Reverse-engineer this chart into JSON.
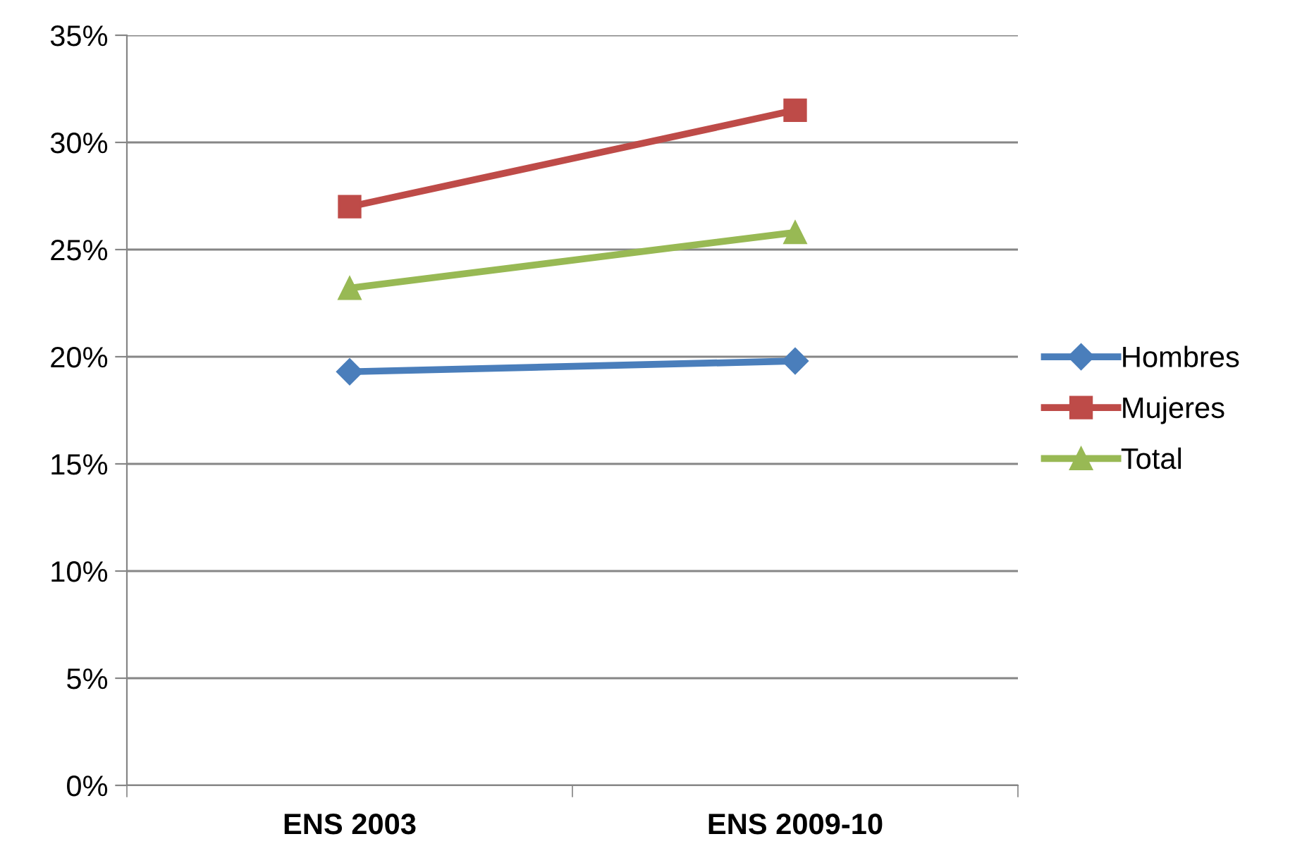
{
  "chart_data": {
    "type": "line",
    "categories": [
      "ENS 2003",
      "ENS 2009-10"
    ],
    "series": [
      {
        "name": "Hombres",
        "color": "#4a7ebb",
        "marker": "diamond",
        "values": [
          19.3,
          19.8
        ]
      },
      {
        "name": "Mujeres",
        "color": "#be4b48",
        "marker": "square",
        "values": [
          27.0,
          31.5
        ]
      },
      {
        "name": "Total",
        "color": "#98b954",
        "marker": "triangle",
        "values": [
          23.2,
          25.8
        ]
      }
    ],
    "ylim": [
      0,
      35
    ],
    "yticks": [
      {
        "value": 0,
        "label": "0%"
      },
      {
        "value": 5,
        "label": "5%"
      },
      {
        "value": 10,
        "label": "10%"
      },
      {
        "value": 15,
        "label": "15%"
      },
      {
        "value": 20,
        "label": "20%"
      },
      {
        "value": 25,
        "label": "25%"
      },
      {
        "value": 30,
        "label": "30%"
      },
      {
        "value": 35,
        "label": "35%"
      }
    ],
    "grid": "y",
    "legend": "right",
    "line_style": "solid"
  }
}
